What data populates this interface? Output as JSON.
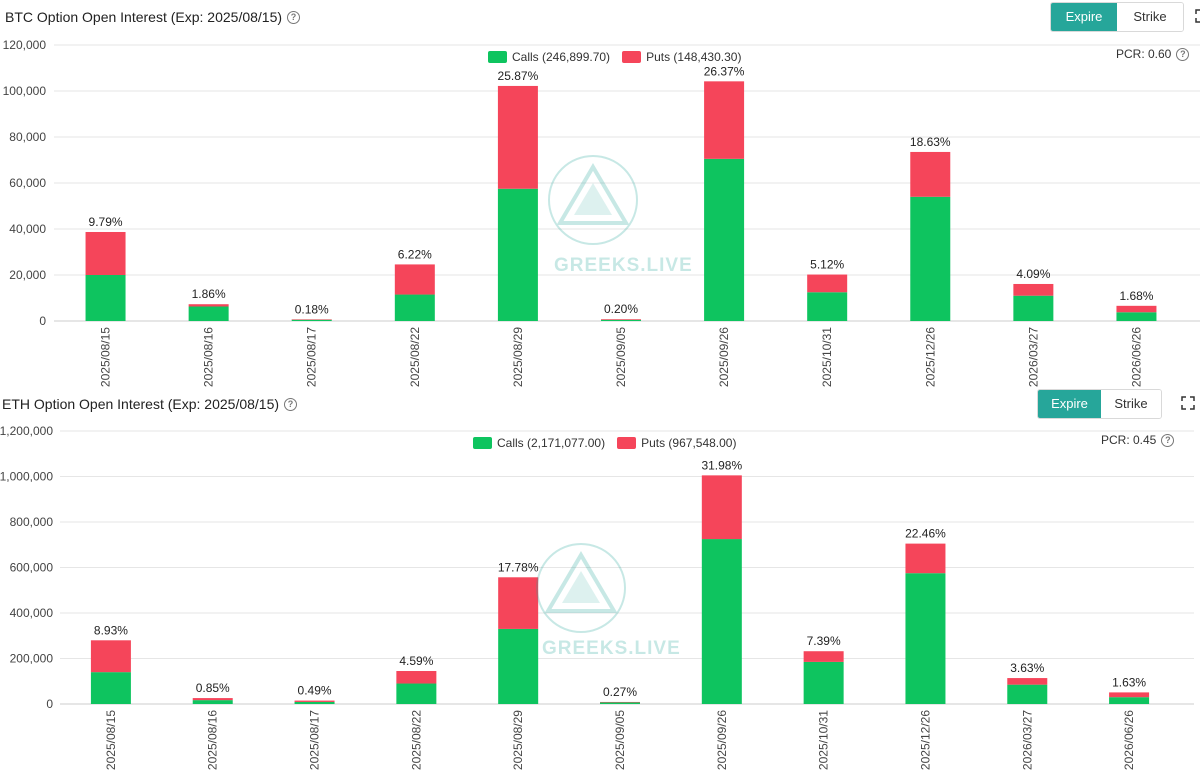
{
  "colors": {
    "calls": "#0ec45f",
    "puts": "#f5455a",
    "accent": "#26a69a",
    "grid": "#e6e6e6"
  },
  "watermark": {
    "text": "GREEKS.LIVE"
  },
  "btc": {
    "title": "BTC Option Open Interest (Exp: 2025/08/15)",
    "tabs": {
      "expire": "Expire",
      "strike": "Strike"
    },
    "legend": {
      "calls": "Calls (246,899.70)",
      "puts": "Puts (148,430.30)"
    },
    "pcr": "PCR: 0.60"
  },
  "eth": {
    "title": "ETH Option Open Interest (Exp: 2025/08/15)",
    "tabs": {
      "expire": "Expire",
      "strike": "Strike"
    },
    "legend": {
      "calls": "Calls (2,171,077.00)",
      "puts": "Puts (967,548.00)"
    },
    "pcr": "PCR: 0.45"
  },
  "chart_data": [
    {
      "type": "bar",
      "stacked": true,
      "title": "BTC Option Open Interest (Exp: 2025/08/15)",
      "categories": [
        "2025/08/15",
        "2025/08/16",
        "2025/08/17",
        "2025/08/22",
        "2025/08/29",
        "2025/09/05",
        "2025/09/26",
        "2025/10/31",
        "2025/12/26",
        "2026/03/27",
        "2026/06/26"
      ],
      "series": [
        {
          "name": "Calls (246,899.70)",
          "values": [
            20000,
            6300,
            600,
            11500,
            57500,
            500,
            70500,
            12500,
            54000,
            11000,
            3800
          ]
        },
        {
          "name": "Puts (148,430.30)",
          "values": [
            18700,
            1000,
            100,
            13100,
            44700,
            300,
            33700,
            7700,
            19500,
            5100,
            2800
          ]
        }
      ],
      "labels": [
        "9.79%",
        "1.86%",
        "0.18%",
        "6.22%",
        "25.87%",
        "0.20%",
        "26.37%",
        "5.12%",
        "18.63%",
        "4.09%",
        "1.68%"
      ],
      "yticks": [
        "0",
        "20,000",
        "40,000",
        "60,000",
        "80,000",
        "100,000",
        "120,000"
      ],
      "ylim": [
        0,
        120000
      ]
    },
    {
      "type": "bar",
      "stacked": true,
      "title": "ETH Option Open Interest (Exp: 2025/08/15)",
      "categories": [
        "2025/08/15",
        "2025/08/16",
        "2025/08/17",
        "2025/08/22",
        "2025/08/29",
        "2025/09/05",
        "2025/09/26",
        "2025/10/31",
        "2025/12/26",
        "2026/03/27",
        "2026/06/26"
      ],
      "series": [
        {
          "name": "Calls (2,171,077.00)",
          "values": [
            140000,
            17000,
            9000,
            90000,
            330000,
            7000,
            725000,
            185000,
            575000,
            85000,
            30000
          ]
        },
        {
          "name": "Puts (967,548.00)",
          "values": [
            140000,
            9000,
            6000,
            55000,
            227000,
            2000,
            280000,
            47000,
            130000,
            29000,
            21000
          ]
        }
      ],
      "labels": [
        "8.93%",
        "0.85%",
        "0.49%",
        "4.59%",
        "17.78%",
        "0.27%",
        "31.98%",
        "7.39%",
        "22.46%",
        "3.63%",
        "1.63%"
      ],
      "yticks": [
        "0",
        "200,000",
        "400,000",
        "600,000",
        "800,000",
        "1,000,000",
        "1,200,000"
      ],
      "ylim": [
        0,
        1200000
      ]
    }
  ]
}
